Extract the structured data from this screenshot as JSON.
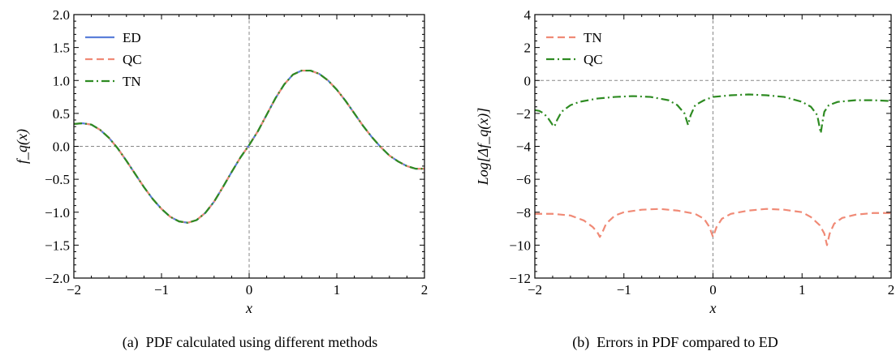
{
  "captions": [
    "(a)  PDF calculated using different methods",
    "(b)  Errors in PDF compared to ED"
  ],
  "chart_data": [
    {
      "type": "line",
      "xlabel": "x",
      "ylabel": "f_q(x)",
      "xlim": [
        -2,
        2
      ],
      "ylim": [
        -2.0,
        2.0
      ],
      "xticks": [
        -2,
        -1,
        0,
        1,
        2
      ],
      "xtick_labels": [
        "−2",
        "−1",
        "0",
        "1",
        "2"
      ],
      "yticks": [
        -2.0,
        -1.5,
        -1.0,
        -0.5,
        0.0,
        0.5,
        1.0,
        1.5,
        2.0
      ],
      "ytick_labels": [
        "−2.0",
        "−1.5",
        "−1.0",
        "−0.5",
        "0.0",
        "0.5",
        "1.0",
        "1.5",
        "2.0"
      ],
      "reference_lines": {
        "x": 0,
        "y": 0
      },
      "legend_position": "top-left",
      "x": [
        -2.0,
        -1.9,
        -1.8,
        -1.7,
        -1.6,
        -1.5,
        -1.4,
        -1.3,
        -1.2,
        -1.1,
        -1.0,
        -0.9,
        -0.8,
        -0.7,
        -0.6,
        -0.5,
        -0.4,
        -0.3,
        -0.2,
        -0.1,
        0.0,
        0.1,
        0.2,
        0.3,
        0.4,
        0.5,
        0.6,
        0.7,
        0.8,
        0.9,
        1.0,
        1.1,
        1.2,
        1.3,
        1.4,
        1.5,
        1.6,
        1.7,
        1.8,
        1.9,
        2.0
      ],
      "series": [
        {
          "name": "ED",
          "color": "#5b7fd9",
          "dash": "solid",
          "values": [
            0.34,
            0.35,
            0.33,
            0.25,
            0.13,
            -0.03,
            -0.22,
            -0.42,
            -0.62,
            -0.8,
            -0.95,
            -1.07,
            -1.14,
            -1.16,
            -1.12,
            -1.01,
            -0.84,
            -0.62,
            -0.39,
            -0.17,
            0.02,
            0.23,
            0.48,
            0.73,
            0.94,
            1.09,
            1.15,
            1.15,
            1.1,
            1.0,
            0.86,
            0.69,
            0.5,
            0.31,
            0.14,
            -0.01,
            -0.14,
            -0.23,
            -0.3,
            -0.34,
            -0.34
          ]
        },
        {
          "name": "QC",
          "color": "#f08a76",
          "dash": "dashed",
          "values": [
            0.34,
            0.35,
            0.33,
            0.25,
            0.13,
            -0.03,
            -0.22,
            -0.42,
            -0.62,
            -0.8,
            -0.95,
            -1.07,
            -1.14,
            -1.16,
            -1.12,
            -1.01,
            -0.84,
            -0.62,
            -0.39,
            -0.17,
            0.02,
            0.23,
            0.48,
            0.73,
            0.94,
            1.09,
            1.15,
            1.15,
            1.1,
            1.0,
            0.86,
            0.69,
            0.5,
            0.31,
            0.14,
            -0.01,
            -0.14,
            -0.23,
            -0.3,
            -0.34,
            -0.34
          ]
        },
        {
          "name": "TN",
          "color": "#2e8b22",
          "dash": "dashdot",
          "values": [
            0.34,
            0.35,
            0.33,
            0.25,
            0.13,
            -0.03,
            -0.22,
            -0.42,
            -0.62,
            -0.8,
            -0.95,
            -1.07,
            -1.14,
            -1.16,
            -1.12,
            -1.01,
            -0.84,
            -0.62,
            -0.39,
            -0.17,
            0.02,
            0.23,
            0.48,
            0.73,
            0.94,
            1.09,
            1.15,
            1.15,
            1.1,
            1.0,
            0.86,
            0.69,
            0.5,
            0.31,
            0.14,
            -0.01,
            -0.14,
            -0.23,
            -0.3,
            -0.34,
            -0.34
          ]
        }
      ]
    },
    {
      "type": "line",
      "xlabel": "x",
      "ylabel": "Log[Δf_q(x)]",
      "xlim": [
        -2,
        2
      ],
      "ylim": [
        -12,
        4
      ],
      "xticks": [
        -2,
        -1,
        0,
        1,
        2
      ],
      "xtick_labels": [
        "−2",
        "−1",
        "0",
        "1",
        "2"
      ],
      "yticks": [
        -12,
        -10,
        -8,
        -6,
        -4,
        -2,
        0,
        2,
        4
      ],
      "ytick_labels": [
        "−12",
        "−10",
        "−8",
        "−6",
        "−4",
        "−2",
        "0",
        "2",
        "4"
      ],
      "reference_lines": {
        "x": 0,
        "y": 0
      },
      "legend_position": "top-left",
      "series": [
        {
          "name": "TN",
          "color": "#f08a76",
          "dash": "dashed",
          "x": [
            -2.0,
            -1.8,
            -1.6,
            -1.45,
            -1.35,
            -1.3,
            -1.27,
            -1.24,
            -1.2,
            -1.1,
            -1.0,
            -0.8,
            -0.6,
            -0.4,
            -0.2,
            -0.1,
            -0.04,
            0.0,
            0.04,
            0.1,
            0.2,
            0.4,
            0.6,
            0.8,
            1.0,
            1.1,
            1.2,
            1.25,
            1.28,
            1.31,
            1.36,
            1.45,
            1.6,
            1.8,
            2.0
          ],
          "values": [
            -8.1,
            -8.1,
            -8.2,
            -8.5,
            -8.9,
            -9.2,
            -9.5,
            -9.2,
            -8.7,
            -8.2,
            -8.0,
            -7.85,
            -7.8,
            -7.9,
            -8.1,
            -8.4,
            -8.9,
            -9.5,
            -8.9,
            -8.4,
            -8.1,
            -7.9,
            -7.8,
            -7.85,
            -8.0,
            -8.3,
            -8.8,
            -9.3,
            -10.0,
            -9.3,
            -8.7,
            -8.35,
            -8.15,
            -8.05,
            -8.05
          ]
        },
        {
          "name": "QC",
          "color": "#2e8b22",
          "dash": "dashdot",
          "x": [
            -2.0,
            -1.95,
            -1.9,
            -1.85,
            -1.8,
            -1.78,
            -1.75,
            -1.7,
            -1.6,
            -1.5,
            -1.3,
            -1.1,
            -0.9,
            -0.7,
            -0.5,
            -0.4,
            -0.32,
            -0.28,
            -0.25,
            -0.2,
            -0.1,
            0.0,
            0.2,
            0.4,
            0.6,
            0.8,
            1.0,
            1.1,
            1.17,
            1.21,
            1.23,
            1.25,
            1.3,
            1.4,
            1.6,
            1.8,
            2.0
          ],
          "values": [
            -1.8,
            -1.85,
            -2.0,
            -2.3,
            -2.7,
            -2.8,
            -2.4,
            -1.9,
            -1.5,
            -1.3,
            -1.1,
            -1.0,
            -0.95,
            -1.0,
            -1.2,
            -1.5,
            -2.0,
            -2.7,
            -2.1,
            -1.5,
            -1.2,
            -1.0,
            -0.9,
            -0.85,
            -0.9,
            -1.0,
            -1.3,
            -1.6,
            -2.1,
            -3.2,
            -2.5,
            -1.9,
            -1.5,
            -1.3,
            -1.2,
            -1.2,
            -1.25
          ]
        }
      ]
    }
  ]
}
